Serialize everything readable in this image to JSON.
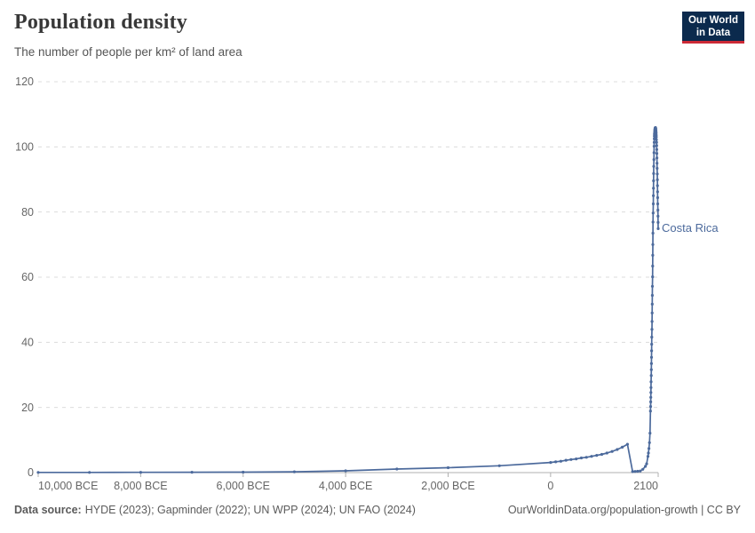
{
  "header": {
    "title": "Population density",
    "subtitle": "The number of people per km² of land area"
  },
  "logo": {
    "line1": "Our World",
    "line2": "in Data",
    "bg_color": "#0b2a4d",
    "accent_color": "#cc2936"
  },
  "footer": {
    "sources_label": "Data source:",
    "sources": "HYDE (2023); Gapminder (2022); UN WPP (2024); UN FAO (2024)",
    "link_text": "OurWorldinData.org/population-growth | CC BY"
  },
  "chart_data": {
    "type": "line",
    "title": "Population density",
    "subtitle": "The number of people per km² of land area",
    "xlabel": "",
    "ylabel": "",
    "xlim": [
      -10000,
      2100
    ],
    "ylim": [
      0,
      120
    ],
    "grid": "horizontal-dashed",
    "legend_position": "end-of-line-label",
    "yticks": [
      0,
      20,
      40,
      60,
      80,
      100,
      120
    ],
    "xticks": [
      {
        "value": -10000,
        "label": "10,000 BCE"
      },
      {
        "value": -8000,
        "label": "8,000 BCE"
      },
      {
        "value": -6000,
        "label": "6,000 BCE"
      },
      {
        "value": -4000,
        "label": "4,000 BCE"
      },
      {
        "value": -2000,
        "label": "2,000 BCE"
      },
      {
        "value": 0,
        "label": "0"
      },
      {
        "value": 2100,
        "label": "2100"
      }
    ],
    "colors": {
      "line": "#4C6A9C",
      "grid": "#dcdcdc",
      "axis": "#b0b0b0",
      "tick_label": "#666666"
    },
    "series": [
      {
        "name": "Costa Rica",
        "color": "#4C6A9C",
        "points": [
          [
            -10000,
            0.05
          ],
          [
            -9000,
            0.06
          ],
          [
            -8000,
            0.08
          ],
          [
            -7000,
            0.1
          ],
          [
            -6000,
            0.14
          ],
          [
            -5000,
            0.24
          ],
          [
            -4000,
            0.55
          ],
          [
            -3000,
            1.1
          ],
          [
            -2000,
            1.5
          ],
          [
            -1000,
            2.1
          ],
          [
            0,
            3.1
          ],
          [
            100,
            3.3
          ],
          [
            200,
            3.5
          ],
          [
            300,
            3.8
          ],
          [
            400,
            4.0
          ],
          [
            500,
            4.2
          ],
          [
            600,
            4.5
          ],
          [
            700,
            4.7
          ],
          [
            800,
            5.0
          ],
          [
            900,
            5.3
          ],
          [
            1000,
            5.6
          ],
          [
            1100,
            6.0
          ],
          [
            1200,
            6.5
          ],
          [
            1300,
            7.1
          ],
          [
            1400,
            7.8
          ],
          [
            1500,
            8.7
          ],
          [
            1600,
            0.3
          ],
          [
            1650,
            0.35
          ],
          [
            1700,
            0.4
          ],
          [
            1750,
            0.5
          ],
          [
            1800,
            1.0
          ],
          [
            1850,
            1.9
          ],
          [
            1875,
            2.7
          ],
          [
            1900,
            5.0
          ],
          [
            1910,
            6.0
          ],
          [
            1920,
            7.4
          ],
          [
            1930,
            9.2
          ],
          [
            1940,
            12.1
          ],
          [
            1950,
            18.9
          ],
          [
            1952,
            20.3
          ],
          [
            1954,
            21.7
          ],
          [
            1956,
            23.1
          ],
          [
            1958,
            24.6
          ],
          [
            1960,
            26.1
          ],
          [
            1962,
            27.9
          ],
          [
            1964,
            29.8
          ],
          [
            1966,
            31.6
          ],
          [
            1968,
            33.5
          ],
          [
            1970,
            35.4
          ],
          [
            1972,
            37.4
          ],
          [
            1974,
            39.4
          ],
          [
            1976,
            41.6
          ],
          [
            1978,
            44.0
          ],
          [
            1980,
            46.4
          ],
          [
            1982,
            49.0
          ],
          [
            1984,
            51.7
          ],
          [
            1986,
            54.4
          ],
          [
            1988,
            57.2
          ],
          [
            1990,
            60.1
          ],
          [
            1992,
            63.4
          ],
          [
            1994,
            66.7
          ],
          [
            1996,
            70.0
          ],
          [
            1998,
            73.5
          ],
          [
            2000,
            76.9
          ],
          [
            2002,
            79.7
          ],
          [
            2004,
            82.5
          ],
          [
            2006,
            85.0
          ],
          [
            2008,
            87.3
          ],
          [
            2010,
            89.6
          ],
          [
            2012,
            91.8
          ],
          [
            2014,
            94.0
          ],
          [
            2016,
            96.1
          ],
          [
            2018,
            98.2
          ],
          [
            2020,
            100.2
          ],
          [
            2022,
            101.4
          ],
          [
            2024,
            102.5
          ],
          [
            2026,
            103.3
          ],
          [
            2028,
            103.9
          ],
          [
            2030,
            104.3
          ],
          [
            2032,
            104.7
          ],
          [
            2034,
            105.0
          ],
          [
            2036,
            105.3
          ],
          [
            2038,
            105.5
          ],
          [
            2040,
            105.7
          ],
          [
            2042,
            105.8
          ],
          [
            2044,
            105.9
          ],
          [
            2046,
            105.9
          ],
          [
            2048,
            105.9
          ],
          [
            2050,
            105.8
          ],
          [
            2052,
            105.6
          ],
          [
            2054,
            105.4
          ],
          [
            2056,
            105.0
          ],
          [
            2058,
            104.6
          ],
          [
            2060,
            104.2
          ],
          [
            2062,
            103.6
          ],
          [
            2064,
            103.0
          ],
          [
            2066,
            102.2
          ],
          [
            2068,
            101.4
          ],
          [
            2070,
            100.4
          ],
          [
            2072,
            99.2
          ],
          [
            2074,
            98.0
          ],
          [
            2076,
            96.6
          ],
          [
            2078,
            95.0
          ],
          [
            2080,
            93.4
          ],
          [
            2082,
            91.7
          ],
          [
            2084,
            89.9
          ],
          [
            2086,
            88.1
          ],
          [
            2088,
            86.2
          ],
          [
            2090,
            84.4
          ],
          [
            2092,
            82.5
          ],
          [
            2094,
            80.6
          ],
          [
            2096,
            78.7
          ],
          [
            2098,
            76.8
          ],
          [
            2100,
            74.9
          ]
        ]
      }
    ]
  }
}
